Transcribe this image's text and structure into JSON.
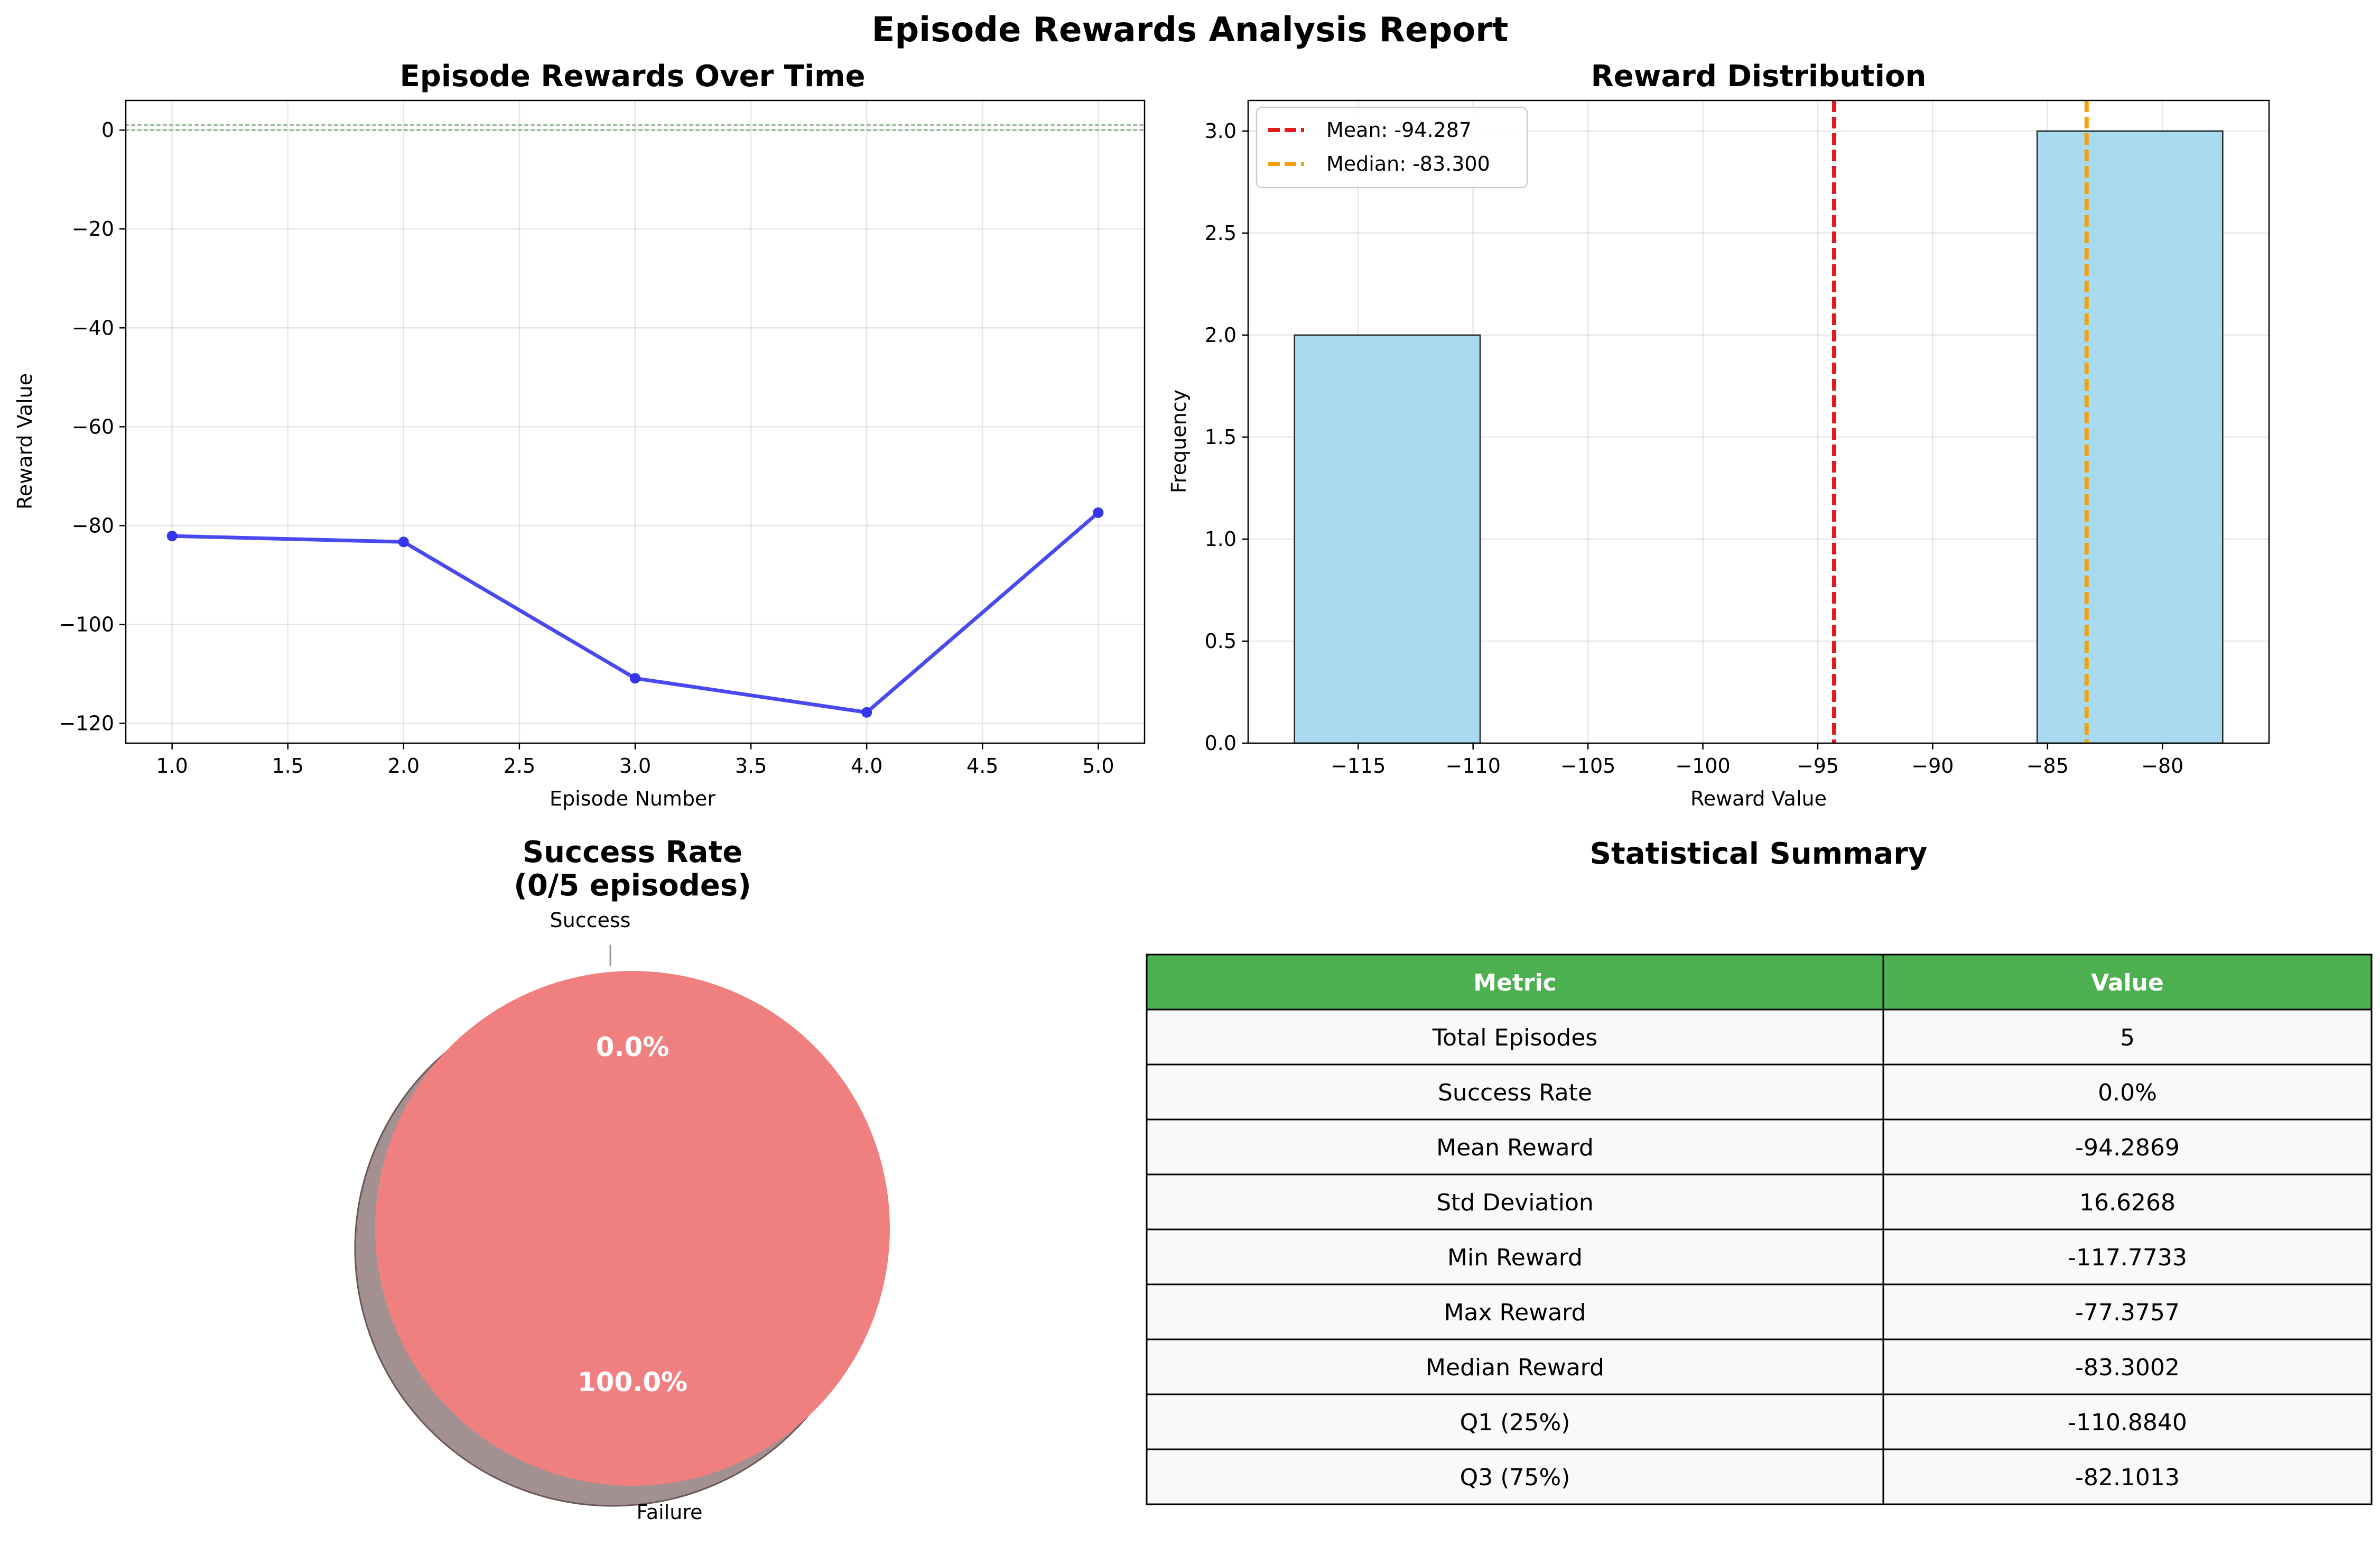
{
  "suptitle": "Episode Rewards Analysis Report",
  "colors": {
    "line": "#3535ee",
    "hist_bar": "#a8dbef",
    "mean_line": "#e41a1c",
    "median_line": "#f5a00f",
    "ref_line": "#9fbf9f",
    "failure": "#f08080",
    "shadow": "#a39191",
    "table_header": "#4caf50",
    "table_row": "#f8f9fa"
  },
  "chart_data": [
    {
      "type": "line",
      "title": "Episode Rewards Over Time",
      "xlabel": "Episode Number",
      "ylabel": "Reward Value",
      "x": [
        1,
        2,
        3,
        4,
        5
      ],
      "y": [
        -82.1013,
        -83.3002,
        -110.884,
        -117.7733,
        -77.3757
      ],
      "reference_lines": [
        0,
        1
      ],
      "xlim": [
        0.8,
        5.2
      ],
      "ylim": [
        -124,
        6
      ],
      "xticks": [
        "1.0",
        "1.5",
        "2.0",
        "2.5",
        "3.0",
        "3.5",
        "4.0",
        "4.5",
        "5.0"
      ],
      "xtick_values": [
        1.0,
        1.5,
        2.0,
        2.5,
        3.0,
        3.5,
        4.0,
        4.5,
        5.0
      ],
      "yticks": [
        "0",
        "−20",
        "−40",
        "−60",
        "−80",
        "−100",
        "−120"
      ],
      "ytick_values": [
        0,
        -20,
        -40,
        -60,
        -80,
        -100,
        -120
      ],
      "grid": true
    },
    {
      "type": "bar",
      "title": "Reward Distribution",
      "xlabel": "Reward Value",
      "ylabel": "Frequency",
      "bins": [
        {
          "from": -117.7733,
          "to": -109.6928,
          "count": 2
        },
        {
          "from": -109.6928,
          "to": -101.6123,
          "count": 0
        },
        {
          "from": -101.6123,
          "to": -93.5318,
          "count": 0
        },
        {
          "from": -93.5318,
          "to": -85.4513,
          "count": 0
        },
        {
          "from": -85.4513,
          "to": -77.3757,
          "count": 3
        }
      ],
      "mean": -94.2869,
      "median": -83.3002,
      "legend": [
        "Mean: -94.287",
        "Median: -83.300"
      ],
      "legend_position": "top-left",
      "xlim": [
        -119.79,
        -75.36
      ],
      "ylim": [
        0,
        3.15
      ],
      "xticks": [
        "−115",
        "−110",
        "−105",
        "−100",
        "−95",
        "−90",
        "−85",
        "−80"
      ],
      "xtick_values": [
        -115,
        -110,
        -105,
        -100,
        -95,
        -90,
        -85,
        -80
      ],
      "yticks": [
        "0.0",
        "0.5",
        "1.0",
        "1.5",
        "2.0",
        "2.5",
        "3.0"
      ],
      "ytick_values": [
        0,
        0.5,
        1.0,
        1.5,
        2.0,
        2.5,
        3.0
      ],
      "grid": true
    },
    {
      "type": "pie",
      "title": "Success Rate",
      "subtitle": "(0/5 episodes)",
      "labels": [
        "Success",
        "Failure"
      ],
      "values": [
        0,
        5
      ],
      "percent_labels": [
        "0.0%",
        "100.0%"
      ],
      "shadow": true
    },
    {
      "type": "table",
      "title": "Statistical Summary",
      "columns": [
        "Metric",
        "Value"
      ],
      "rows": [
        [
          "Total Episodes",
          "5"
        ],
        [
          "Success Rate",
          "0.0%"
        ],
        [
          "Mean Reward",
          "-94.2869"
        ],
        [
          "Std Deviation",
          "16.6268"
        ],
        [
          "Min Reward",
          "-117.7733"
        ],
        [
          "Max Reward",
          "-77.3757"
        ],
        [
          "Median Reward",
          "-83.3002"
        ],
        [
          "Q1 (25%)",
          "-110.8840"
        ],
        [
          "Q3 (75%)",
          "-82.1013"
        ]
      ]
    }
  ]
}
